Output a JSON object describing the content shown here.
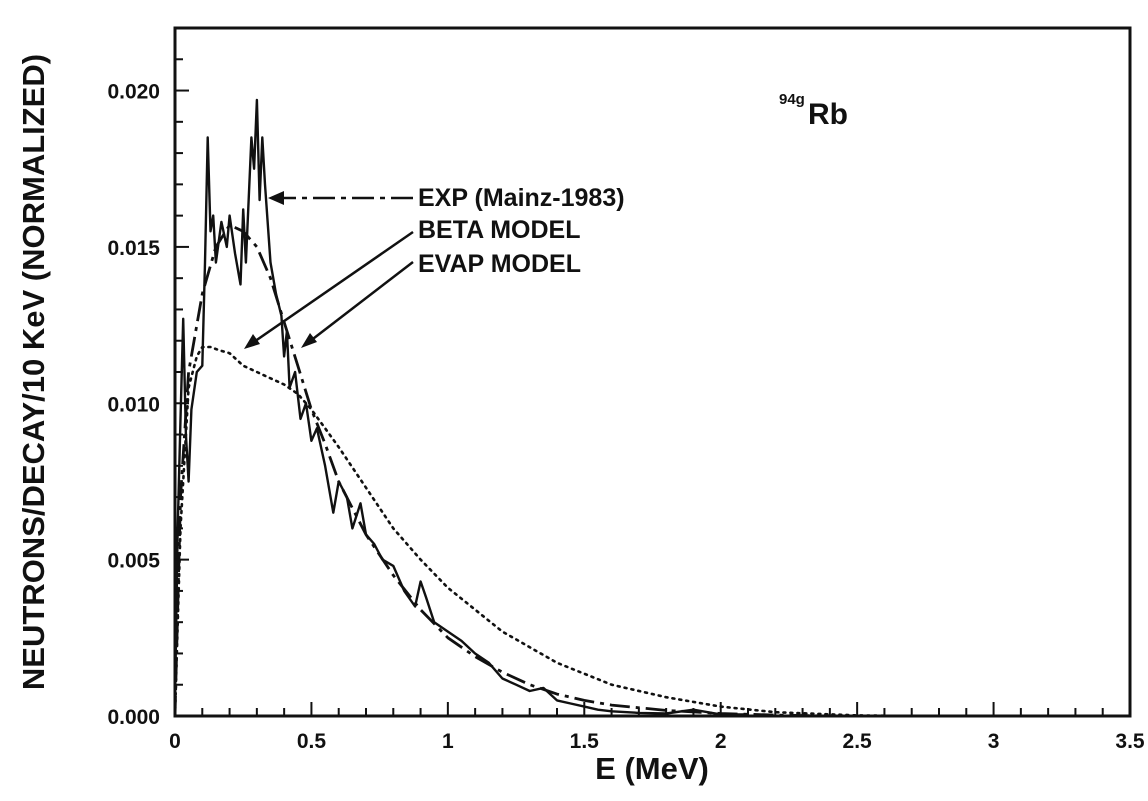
{
  "chart_data": {
    "type": "line",
    "xlabel": "E (MeV)",
    "ylabel": "NEUTRONS/DECAY/10 KeV (NORMALIZED)",
    "xlim": [
      0,
      3.5
    ],
    "ylim": [
      0,
      0.022
    ],
    "x_ticks": [
      "0",
      "0.5",
      "1",
      "1.5",
      "2",
      "2.5",
      "3",
      "3.5"
    ],
    "y_ticks": [
      "0.000",
      "0.005",
      "0.010",
      "0.015",
      "0.020"
    ],
    "annotation": {
      "superscript": "94g",
      "label": "Rb"
    },
    "grid": false,
    "colors": {
      "ink": "#111111",
      "background": "#ffffff"
    },
    "series": [
      {
        "name": "EXP (Mainz-1983)",
        "style": "solid",
        "x": [
          0,
          0.01,
          0.02,
          0.03,
          0.04,
          0.05,
          0.06,
          0.08,
          0.1,
          0.11,
          0.12,
          0.13,
          0.14,
          0.15,
          0.17,
          0.19,
          0.2,
          0.22,
          0.24,
          0.25,
          0.26,
          0.28,
          0.29,
          0.3,
          0.31,
          0.32,
          0.33,
          0.35,
          0.37,
          0.39,
          0.4,
          0.41,
          0.42,
          0.44,
          0.46,
          0.48,
          0.5,
          0.52,
          0.55,
          0.58,
          0.6,
          0.63,
          0.65,
          0.68,
          0.7,
          0.73,
          0.76,
          0.8,
          0.84,
          0.88,
          0.9,
          0.92,
          0.95,
          1.0,
          1.05,
          1.1,
          1.15,
          1.2,
          1.25,
          1.3,
          1.35,
          1.4,
          1.45,
          1.5,
          1.55,
          1.6,
          1.7,
          1.8,
          1.9,
          2.0,
          2.1
        ],
        "y": [
          0.0005,
          0.006,
          0.0095,
          0.0127,
          0.009,
          0.0075,
          0.0098,
          0.011,
          0.0112,
          0.0145,
          0.0185,
          0.0155,
          0.016,
          0.0145,
          0.0158,
          0.015,
          0.016,
          0.0148,
          0.0138,
          0.0162,
          0.0145,
          0.0185,
          0.0175,
          0.0197,
          0.0165,
          0.0185,
          0.017,
          0.0145,
          0.0135,
          0.0128,
          0.0115,
          0.0123,
          0.0105,
          0.011,
          0.0095,
          0.01,
          0.0088,
          0.0092,
          0.008,
          0.0065,
          0.0075,
          0.007,
          0.006,
          0.0068,
          0.0058,
          0.0055,
          0.005,
          0.0048,
          0.004,
          0.0035,
          0.0043,
          0.0038,
          0.003,
          0.0027,
          0.0024,
          0.002,
          0.0017,
          0.0012,
          0.001,
          0.0008,
          0.0009,
          0.0005,
          0.0004,
          0.0003,
          0.0002,
          0.00015,
          0.0001,
          8e-05,
          0.0002,
          5e-05,
          5e-05
        ]
      },
      {
        "name": "BETA MODEL",
        "style": "dashdot",
        "x": [
          0,
          0.02,
          0.05,
          0.08,
          0.1,
          0.15,
          0.2,
          0.25,
          0.3,
          0.35,
          0.4,
          0.45,
          0.5,
          0.55,
          0.6,
          0.7,
          0.8,
          0.9,
          1.0,
          1.1,
          1.2,
          1.3,
          1.4,
          1.5,
          1.6,
          1.8,
          2.0,
          2.2,
          2.4
        ],
        "y": [
          0,
          0.007,
          0.011,
          0.0125,
          0.0135,
          0.015,
          0.0157,
          0.0155,
          0.015,
          0.014,
          0.0126,
          0.0112,
          0.0098,
          0.0087,
          0.0075,
          0.0058,
          0.0045,
          0.0034,
          0.0025,
          0.0019,
          0.0014,
          0.001,
          0.0007,
          0.0005,
          0.00035,
          0.00018,
          8e-05,
          3e-05,
          0
        ]
      },
      {
        "name": "EVAP MODEL",
        "style": "dotted",
        "x": [
          0,
          0.02,
          0.05,
          0.08,
          0.1,
          0.13,
          0.16,
          0.2,
          0.25,
          0.3,
          0.35,
          0.4,
          0.45,
          0.5,
          0.55,
          0.6,
          0.7,
          0.8,
          0.9,
          1.0,
          1.2,
          1.4,
          1.6,
          1.8,
          2.0,
          2.2,
          2.5,
          2.7
        ],
        "y": [
          0,
          0.006,
          0.0105,
          0.0115,
          0.0118,
          0.0118,
          0.0117,
          0.0116,
          0.0112,
          0.011,
          0.0108,
          0.0106,
          0.0103,
          0.0098,
          0.0092,
          0.0086,
          0.0073,
          0.006,
          0.005,
          0.0041,
          0.0027,
          0.0017,
          0.001,
          0.0006,
          0.0003,
          0.00012,
          2e-05,
          0
        ]
      }
    ]
  }
}
